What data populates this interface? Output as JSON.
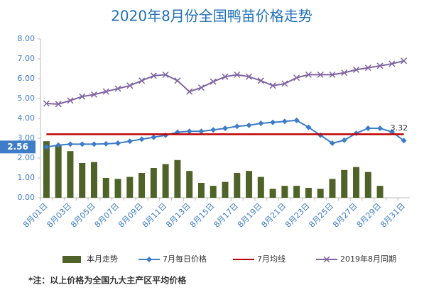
{
  "chart_data": {
    "type": "combo",
    "title": "2020年8月份全国鸭苗价格走势",
    "categories": [
      "8月01日",
      null,
      "8月03日",
      null,
      "8月05日",
      null,
      "8月07日",
      null,
      "8月09日",
      null,
      "8月11日",
      null,
      "8月13日",
      null,
      "8月15日",
      null,
      "8月17日",
      null,
      "8月19日",
      null,
      "8月21日",
      null,
      "8月23日",
      null,
      "8月25日",
      null,
      "8月27日",
      null,
      "8月29日",
      null,
      "8月31日"
    ],
    "series": [
      {
        "name": "本月走势",
        "kind": "bar",
        "color": "#4f6228",
        "values": [
          2.85,
          2.65,
          2.35,
          1.75,
          1.8,
          1.0,
          0.95,
          1.05,
          1.25,
          1.5,
          1.7,
          1.9,
          1.35,
          0.75,
          0.6,
          0.8,
          1.25,
          1.35,
          1.05,
          0.45,
          0.6,
          0.6,
          0.5,
          0.45,
          0.95,
          1.4,
          1.55,
          1.3,
          0.6,
          null,
          null
        ]
      },
      {
        "name": "7月每日价格",
        "kind": "line",
        "marker": "diamond",
        "color": "#3d7cc9",
        "values": [
          2.56,
          2.65,
          2.7,
          2.7,
          2.7,
          2.72,
          2.75,
          2.85,
          2.95,
          3.05,
          3.15,
          3.3,
          3.35,
          3.35,
          3.42,
          3.5,
          3.6,
          3.65,
          3.75,
          3.8,
          3.85,
          3.9,
          3.55,
          3.15,
          2.75,
          2.9,
          3.25,
          3.5,
          3.5,
          3.32,
          2.88
        ],
        "value_labels": [
          "2.56",
          null,
          null,
          null,
          null,
          null,
          null,
          null,
          null,
          null,
          null,
          null,
          null,
          null,
          null,
          null,
          null,
          null,
          null,
          null,
          null,
          null,
          null,
          null,
          null,
          null,
          null,
          null,
          null,
          "3.32",
          null
        ]
      },
      {
        "name": "7月均线",
        "kind": "line",
        "marker": "none",
        "color": "#c00000",
        "values": [
          3.2,
          3.2,
          3.2,
          3.2,
          3.2,
          3.2,
          3.2,
          3.2,
          3.2,
          3.2,
          3.2,
          3.2,
          3.2,
          3.2,
          3.2,
          3.2,
          3.2,
          3.2,
          3.2,
          3.2,
          3.2,
          3.2,
          3.2,
          3.2,
          3.2,
          3.2,
          3.2,
          3.2,
          3.2,
          3.2,
          3.2
        ]
      },
      {
        "name": "2019年8月同期",
        "kind": "line",
        "marker": "x",
        "color": "#8064a2",
        "values": [
          4.75,
          4.72,
          4.9,
          5.1,
          5.2,
          5.35,
          5.5,
          5.65,
          5.9,
          6.15,
          6.2,
          5.9,
          5.35,
          5.55,
          5.85,
          6.1,
          6.2,
          6.1,
          5.9,
          5.65,
          5.75,
          6.05,
          6.2,
          6.2,
          6.2,
          6.3,
          6.45,
          6.55,
          6.65,
          6.75,
          6.9
        ]
      }
    ],
    "ylim": [
      0,
      8
    ],
    "yticks": [
      {
        "value": 0,
        "label": "0.00"
      },
      {
        "value": 1,
        "label": "1.00"
      },
      {
        "value": 2,
        "label": "2.00"
      },
      {
        "value": 3,
        "label": "3.00"
      },
      {
        "value": 4,
        "label": "4.00"
      },
      {
        "value": 5,
        "label": "5.00"
      },
      {
        "value": 6,
        "label": "6.00"
      },
      {
        "value": 7,
        "label": "7.00"
      },
      {
        "value": 8,
        "label": "8.00"
      }
    ],
    "grid": false,
    "legend": "bottom",
    "footnote": "*注：以上价格为全国九大主产区平均价格"
  }
}
